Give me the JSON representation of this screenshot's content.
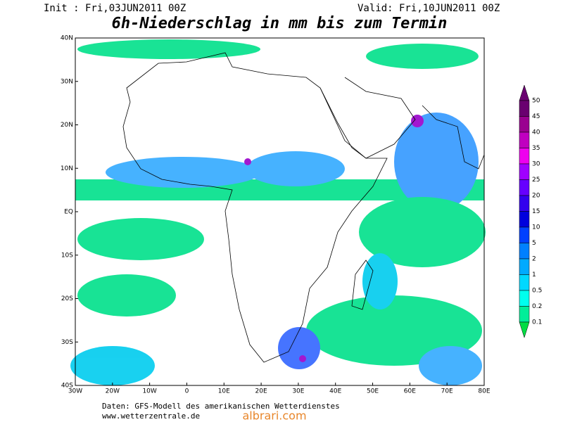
{
  "header": {
    "init": "Init : Fri,03JUN2011 00Z",
    "valid": "Valid: Fri,10JUN2011 00Z",
    "title": "6h-Niederschlag in mm bis zum Termin"
  },
  "lon_labels": [
    "30W",
    "20W",
    "10W",
    "0",
    "10E",
    "20E",
    "30E",
    "40E",
    "50E",
    "60E",
    "70E",
    "80E"
  ],
  "lat_labels": [
    "40N",
    "30N",
    "20N",
    "10N",
    "EQ",
    "10S",
    "20S",
    "30S",
    "40S"
  ],
  "legend": [
    {
      "label": "50",
      "color": "#6a0070"
    },
    {
      "label": "45",
      "color": "#9a0090"
    },
    {
      "label": "40",
      "color": "#c000c0"
    },
    {
      "label": "35",
      "color": "#ee00ee"
    },
    {
      "label": "30",
      "color": "#a000ff"
    },
    {
      "label": "25",
      "color": "#6600ff"
    },
    {
      "label": "20",
      "color": "#3300ee"
    },
    {
      "label": "15",
      "color": "#0000dd"
    },
    {
      "label": "10",
      "color": "#0040ff"
    },
    {
      "label": "5",
      "color": "#0080ff"
    },
    {
      "label": "2",
      "color": "#00aaff"
    },
    {
      "label": "1",
      "color": "#00d8ff"
    },
    {
      "label": "0.5",
      "color": "#00ffee"
    },
    {
      "label": "0.2",
      "color": "#00ee99"
    },
    {
      "label": "0.1",
      "color": "#00dd44"
    }
  ],
  "footer": {
    "source": "Daten: GFS-Modell des amerikanischen Wetterdienstes",
    "url": "www.wetterzentrale.de"
  },
  "watermark": "albrari.com"
}
